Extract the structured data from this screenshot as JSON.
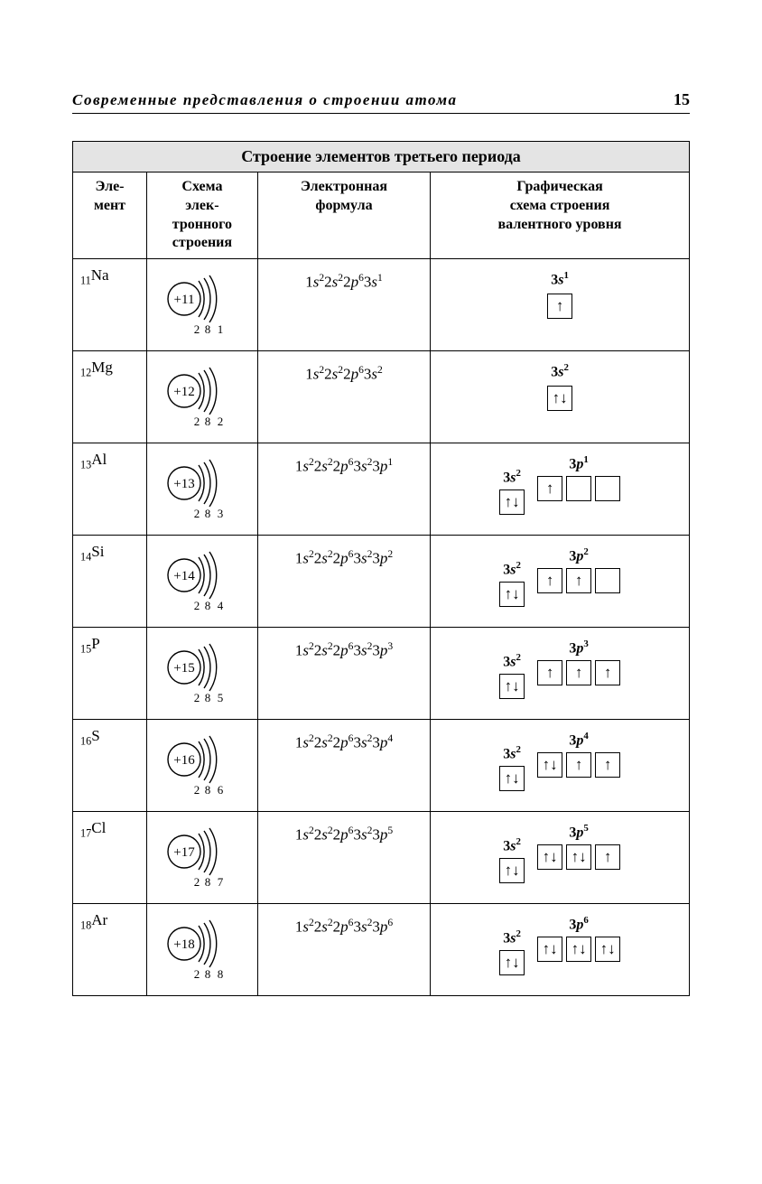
{
  "header": {
    "running_title": "Современные представления о строении атома",
    "page_number": "15"
  },
  "table": {
    "title": "Строение элементов третьего периода",
    "columns": [
      "Эле-\nмент",
      "Схема\nэлек-\nтронного\nстроения",
      "Электронная\nформула",
      "Графическая\nсхема строения\nвалентного уровня"
    ],
    "rows": [
      {
        "z": 11,
        "sym": "Na",
        "shells": [
          2,
          8,
          1
        ],
        "formula": [
          [
            "1",
            "s",
            "2"
          ],
          [
            "2",
            "s",
            "2"
          ],
          [
            "2",
            "p",
            "6"
          ],
          [
            "3",
            "s",
            "1"
          ]
        ],
        "orbitals": {
          "s": {
            "label": "3s",
            "sup": "1",
            "boxes": [
              "↑"
            ]
          },
          "p": null
        }
      },
      {
        "z": 12,
        "sym": "Mg",
        "shells": [
          2,
          8,
          2
        ],
        "formula": [
          [
            "1",
            "s",
            "2"
          ],
          [
            "2",
            "s",
            "2"
          ],
          [
            "2",
            "p",
            "6"
          ],
          [
            "3",
            "s",
            "2"
          ]
        ],
        "orbitals": {
          "s": {
            "label": "3s",
            "sup": "2",
            "boxes": [
              "↑↓"
            ]
          },
          "p": null
        }
      },
      {
        "z": 13,
        "sym": "Al",
        "shells": [
          2,
          8,
          3
        ],
        "formula": [
          [
            "1",
            "s",
            "2"
          ],
          [
            "2",
            "s",
            "2"
          ],
          [
            "2",
            "p",
            "6"
          ],
          [
            "3",
            "s",
            "2"
          ],
          [
            "3",
            "p",
            "1"
          ]
        ],
        "orbitals": {
          "s": {
            "label": "3s",
            "sup": "2",
            "boxes": [
              "↑↓"
            ]
          },
          "p": {
            "label": "3p",
            "sup": "1",
            "boxes": [
              "↑",
              "",
              ""
            ]
          }
        }
      },
      {
        "z": 14,
        "sym": "Si",
        "shells": [
          2,
          8,
          4
        ],
        "formula": [
          [
            "1",
            "s",
            "2"
          ],
          [
            "2",
            "s",
            "2"
          ],
          [
            "2",
            "p",
            "6"
          ],
          [
            "3",
            "s",
            "2"
          ],
          [
            "3",
            "p",
            "2"
          ]
        ],
        "orbitals": {
          "s": {
            "label": "3s",
            "sup": "2",
            "boxes": [
              "↑↓"
            ]
          },
          "p": {
            "label": "3p",
            "sup": "2",
            "boxes": [
              "↑",
              "↑",
              ""
            ]
          }
        }
      },
      {
        "z": 15,
        "sym": "P",
        "shells": [
          2,
          8,
          5
        ],
        "formula": [
          [
            "1",
            "s",
            "2"
          ],
          [
            "2",
            "s",
            "2"
          ],
          [
            "2",
            "p",
            "6"
          ],
          [
            "3",
            "s",
            "2"
          ],
          [
            "3",
            "p",
            "3"
          ]
        ],
        "orbitals": {
          "s": {
            "label": "3s",
            "sup": "2",
            "boxes": [
              "↑↓"
            ]
          },
          "p": {
            "label": "3p",
            "sup": "3",
            "boxes": [
              "↑",
              "↑",
              "↑"
            ]
          }
        }
      },
      {
        "z": 16,
        "sym": "S",
        "shells": [
          2,
          8,
          6
        ],
        "formula": [
          [
            "1",
            "s",
            "2"
          ],
          [
            "2",
            "s",
            "2"
          ],
          [
            "2",
            "p",
            "6"
          ],
          [
            "3",
            "s",
            "2"
          ],
          [
            "3",
            "p",
            "4"
          ]
        ],
        "orbitals": {
          "s": {
            "label": "3s",
            "sup": "2",
            "boxes": [
              "↑↓"
            ]
          },
          "p": {
            "label": "3p",
            "sup": "4",
            "boxes": [
              "↑↓",
              "↑",
              "↑"
            ]
          }
        }
      },
      {
        "z": 17,
        "sym": "Cl",
        "shells": [
          2,
          8,
          7
        ],
        "formula": [
          [
            "1",
            "s",
            "2"
          ],
          [
            "2",
            "s",
            "2"
          ],
          [
            "2",
            "p",
            "6"
          ],
          [
            "3",
            "s",
            "2"
          ],
          [
            "3",
            "p",
            "5"
          ]
        ],
        "orbitals": {
          "s": {
            "label": "3s",
            "sup": "2",
            "boxes": [
              "↑↓"
            ]
          },
          "p": {
            "label": "3p",
            "sup": "5",
            "boxes": [
              "↑↓",
              "↑↓",
              "↑"
            ]
          }
        }
      },
      {
        "z": 18,
        "sym": "Ar",
        "shells": [
          2,
          8,
          8
        ],
        "formula": [
          [
            "1",
            "s",
            "2"
          ],
          [
            "2",
            "s",
            "2"
          ],
          [
            "2",
            "p",
            "6"
          ],
          [
            "3",
            "s",
            "2"
          ],
          [
            "3",
            "p",
            "6"
          ]
        ],
        "orbitals": {
          "s": {
            "label": "3s",
            "sup": "2",
            "boxes": [
              "↑↓"
            ]
          },
          "p": {
            "label": "3p",
            "sup": "6",
            "boxes": [
              "↑↓",
              "↑↓",
              "↑↓"
            ]
          }
        }
      }
    ]
  },
  "style": {
    "border_color": "#000000",
    "header_bg": "#e4e4e4",
    "font_family": "Times New Roman",
    "nucleus_stroke_width": 1.4,
    "arc_stroke_width": 1.4,
    "orb_box_size": 28
  }
}
